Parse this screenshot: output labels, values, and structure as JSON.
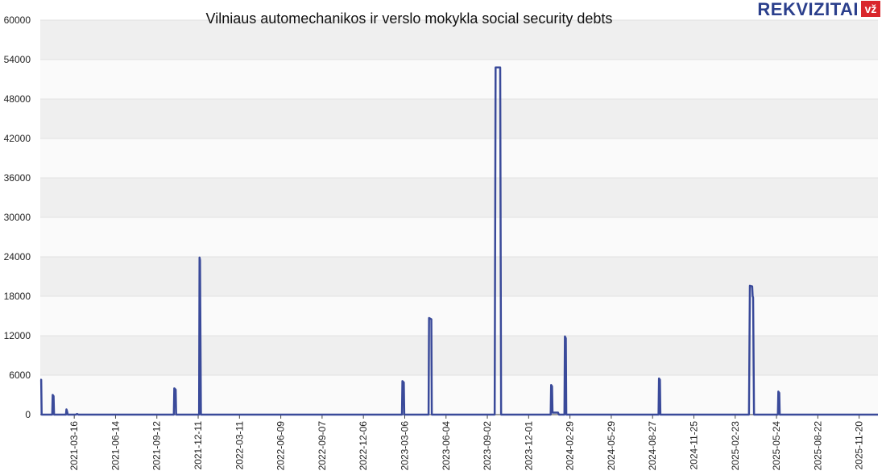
{
  "logo": {
    "text": "REKVIZITAI",
    "badge": "vž",
    "badge_color": "#d9262c",
    "text_color": "#2b3f8c"
  },
  "chart_data": {
    "type": "line",
    "title": "Vilniaus automechanikos ir verslo mokykla social security debts",
    "xlabel": "",
    "ylabel": "",
    "ylim": [
      0,
      60000
    ],
    "xlim": [
      "2021-01-01",
      "2025-12-31"
    ],
    "y_ticks": [
      0,
      6000,
      12000,
      18000,
      24000,
      30000,
      36000,
      42000,
      48000,
      54000,
      60000
    ],
    "x_ticks": [
      "2021-03-16",
      "2021-06-14",
      "2021-09-12",
      "2021-12-11",
      "2022-03-11",
      "2022-06-09",
      "2022-09-07",
      "2022-12-06",
      "2023-03-06",
      "2023-06-04",
      "2023-09-02",
      "2023-12-01",
      "2024-02-29",
      "2024-05-29",
      "2024-08-27",
      "2024-11-25",
      "2025-02-23",
      "2025-05-24",
      "2025-08-22",
      "2025-11-20"
    ],
    "grid": true,
    "line_color": "#3a4a9a",
    "series": [
      {
        "points": [
          [
            "2021-01-01",
            5300
          ],
          [
            "2021-01-03",
            5300
          ],
          [
            "2021-01-04",
            0
          ],
          [
            "2021-01-27",
            0
          ],
          [
            "2021-01-28",
            3000
          ],
          [
            "2021-01-30",
            2800
          ],
          [
            "2021-01-31",
            0
          ],
          [
            "2021-02-26",
            0
          ],
          [
            "2021-02-27",
            800
          ],
          [
            "2021-02-28",
            600
          ],
          [
            "2021-03-02",
            0
          ],
          [
            "2021-03-20",
            0
          ],
          [
            "2021-03-22",
            100
          ],
          [
            "2021-03-25",
            0
          ],
          [
            "2021-10-19",
            0
          ],
          [
            "2021-10-20",
            4000
          ],
          [
            "2021-10-23",
            3800
          ],
          [
            "2021-10-24",
            0
          ],
          [
            "2021-12-13",
            0
          ],
          [
            "2021-12-14",
            23900
          ],
          [
            "2021-12-15",
            23500
          ],
          [
            "2021-12-17",
            0
          ],
          [
            "2023-02-28",
            0
          ],
          [
            "2023-03-01",
            5100
          ],
          [
            "2023-03-04",
            4900
          ],
          [
            "2023-03-05",
            0
          ],
          [
            "2023-04-27",
            0
          ],
          [
            "2023-04-28",
            14700
          ],
          [
            "2023-05-03",
            14500
          ],
          [
            "2023-05-04",
            0
          ],
          [
            "2023-09-18",
            0
          ],
          [
            "2023-09-20",
            52800
          ],
          [
            "2023-09-30",
            52800
          ],
          [
            "2023-10-02",
            0
          ],
          [
            "2024-01-18",
            0
          ],
          [
            "2024-01-19",
            4500
          ],
          [
            "2024-01-21",
            4300
          ],
          [
            "2024-01-22",
            300
          ],
          [
            "2024-02-03",
            300
          ],
          [
            "2024-02-05",
            0
          ],
          [
            "2024-02-17",
            0
          ],
          [
            "2024-02-18",
            11900
          ],
          [
            "2024-02-20",
            11600
          ],
          [
            "2024-02-21",
            0
          ],
          [
            "2024-09-09",
            0
          ],
          [
            "2024-09-10",
            5500
          ],
          [
            "2024-09-12",
            5300
          ],
          [
            "2024-09-13",
            0
          ],
          [
            "2025-03-25",
            0
          ],
          [
            "2025-03-27",
            19600
          ],
          [
            "2025-04-01",
            19500
          ],
          [
            "2025-04-02",
            18000
          ],
          [
            "2025-04-03",
            17800
          ],
          [
            "2025-04-05",
            0
          ],
          [
            "2025-05-27",
            0
          ],
          [
            "2025-05-28",
            3500
          ],
          [
            "2025-05-30",
            3300
          ],
          [
            "2025-05-31",
            0
          ],
          [
            "2025-12-31",
            0
          ]
        ]
      }
    ]
  }
}
